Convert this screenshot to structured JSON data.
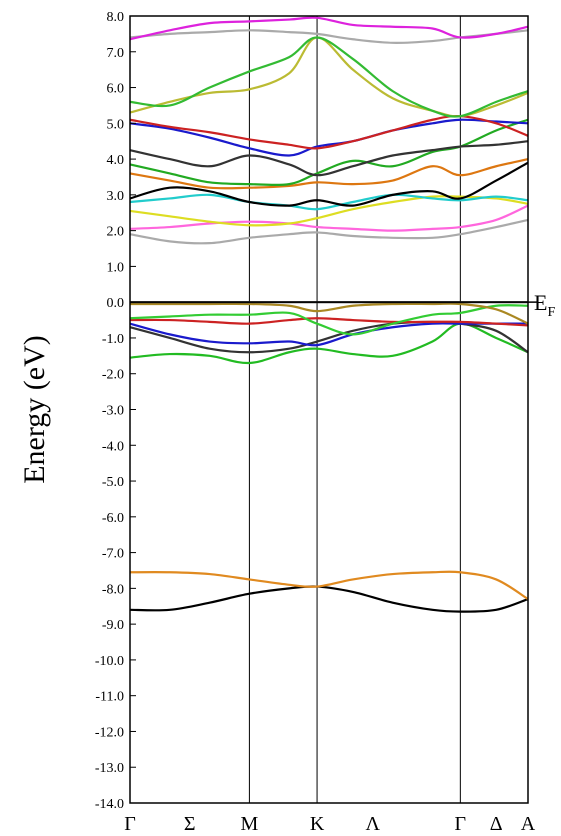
{
  "chart_data": {
    "type": "line",
    "title": "",
    "ylabel": "Energy (eV)",
    "xlabel": "",
    "ylim": [
      -14,
      8
    ],
    "yticks": [
      8,
      7,
      6,
      5,
      4,
      3,
      2,
      1,
      0,
      -1,
      -2,
      -3,
      -4,
      -5,
      -6,
      -7,
      -8,
      -9,
      -10,
      -11,
      -12,
      -13,
      -14
    ],
    "ytick_labels": [
      "8.0",
      "7.0",
      "6.0",
      "5.0",
      "4.0",
      "3.0",
      "2.0",
      "1.0",
      "0.0",
      "-1.0",
      "-2.0",
      "-3.0",
      "-4.0",
      "-5.0",
      "-6.0",
      "-7.0",
      "-8.0",
      "-9.0",
      "-10.0",
      "-11.0",
      "-12.0",
      "-13.0",
      "-14.0"
    ],
    "kpath": [
      {
        "label": "Γ",
        "x": 0.0,
        "vertical_line": false
      },
      {
        "label": "Σ",
        "x": 0.75,
        "vertical_line": false
      },
      {
        "label": "M",
        "x": 1.5,
        "vertical_line": true
      },
      {
        "label": "K",
        "x": 2.35,
        "vertical_line": true
      },
      {
        "label": "Λ",
        "x": 3.05,
        "vertical_line": false
      },
      {
        "label": "Γ",
        "x": 4.15,
        "vertical_line": true
      },
      {
        "label": "Δ",
        "x": 4.6,
        "vertical_line": false
      },
      {
        "label": "A",
        "x": 5.0,
        "vertical_line": false
      }
    ],
    "xlim": [
      0,
      5.0
    ],
    "fermi_level": {
      "y": 0.0,
      "label": "E",
      "subscript": "F"
    },
    "series": [
      {
        "color": "#000000",
        "x": [
          0,
          0.5,
          1.0,
          1.5,
          2.0,
          2.35,
          2.8,
          3.3,
          3.8,
          4.15,
          4.6,
          5.0
        ],
        "y": [
          -8.6,
          -8.6,
          -8.4,
          -8.15,
          -8.0,
          -7.95,
          -8.1,
          -8.4,
          -8.6,
          -8.65,
          -8.6,
          -8.3
        ]
      },
      {
        "color": "#e08a20",
        "x": [
          0,
          0.5,
          1.0,
          1.5,
          2.0,
          2.35,
          2.8,
          3.3,
          3.8,
          4.15,
          4.6,
          5.0
        ],
        "y": [
          -7.55,
          -7.55,
          -7.6,
          -7.75,
          -7.9,
          -7.95,
          -7.75,
          -7.6,
          -7.55,
          -7.55,
          -7.75,
          -8.3
        ]
      },
      {
        "color": "#22bb22",
        "x": [
          0,
          0.5,
          1.0,
          1.5,
          2.0,
          2.35,
          2.8,
          3.3,
          3.8,
          4.15,
          4.6,
          5.0
        ],
        "y": [
          -1.55,
          -1.45,
          -1.5,
          -1.7,
          -1.4,
          -1.3,
          -1.45,
          -1.5,
          -1.1,
          -0.6,
          -1.0,
          -1.4
        ]
      },
      {
        "color": "#333333",
        "x": [
          0,
          0.5,
          1.0,
          1.5,
          2.0,
          2.35,
          2.8,
          3.3,
          3.8,
          4.15,
          4.6,
          5.0
        ],
        "y": [
          -0.7,
          -1.0,
          -1.3,
          -1.4,
          -1.3,
          -1.1,
          -0.8,
          -0.6,
          -0.55,
          -0.6,
          -0.8,
          -1.4
        ]
      },
      {
        "color": "#1a1acc",
        "x": [
          0,
          0.5,
          1.0,
          1.5,
          2.0,
          2.35,
          2.8,
          3.3,
          3.8,
          4.15,
          4.6,
          5.0
        ],
        "y": [
          -0.6,
          -0.9,
          -1.1,
          -1.15,
          -1.1,
          -1.2,
          -0.9,
          -0.7,
          -0.6,
          -0.6,
          -0.6,
          -0.6
        ]
      },
      {
        "color": "#cc2222",
        "x": [
          0,
          0.5,
          1.0,
          1.5,
          2.0,
          2.35,
          2.8,
          3.3,
          3.8,
          4.15,
          4.6,
          5.0
        ],
        "y": [
          -0.5,
          -0.5,
          -0.55,
          -0.6,
          -0.5,
          -0.45,
          -0.5,
          -0.55,
          -0.55,
          -0.55,
          -0.6,
          -0.65
        ]
      },
      {
        "color": "#33cc33",
        "x": [
          0,
          0.5,
          1.0,
          1.5,
          2.0,
          2.35,
          2.8,
          3.3,
          3.8,
          4.15,
          4.6,
          5.0
        ],
        "y": [
          -0.45,
          -0.4,
          -0.35,
          -0.35,
          -0.3,
          -0.6,
          -0.9,
          -0.6,
          -0.35,
          -0.3,
          -0.1,
          -0.1
        ]
      },
      {
        "color": "#aa8822",
        "x": [
          0,
          0.5,
          1.0,
          1.5,
          2.0,
          2.35,
          2.8,
          3.3,
          3.8,
          4.15,
          4.6,
          5.0
        ],
        "y": [
          -0.05,
          -0.05,
          -0.05,
          -0.05,
          -0.1,
          -0.25,
          -0.1,
          -0.05,
          -0.05,
          -0.05,
          -0.2,
          -0.6
        ]
      },
      {
        "color": "#333333",
        "x": [
          0,
          0.5,
          1.0,
          1.5,
          2.0,
          2.35,
          2.8,
          3.3,
          3.8,
          4.15,
          4.6,
          5.0
        ],
        "y": [
          0.0,
          0.0,
          0.0,
          0.0,
          0.0,
          0.0,
          0.0,
          0.0,
          0.0,
          0.0,
          0.0,
          0.0
        ]
      },
      {
        "color": "#ff66dd",
        "x": [
          0,
          0.5,
          1.0,
          1.5,
          2.0,
          2.35,
          2.8,
          3.3,
          3.8,
          4.15,
          4.6,
          5.0
        ],
        "y": [
          2.05,
          2.1,
          2.2,
          2.25,
          2.2,
          2.1,
          2.05,
          2.0,
          2.05,
          2.1,
          2.3,
          2.7
        ]
      },
      {
        "color": "#aaaaaa",
        "x": [
          0,
          0.5,
          1.0,
          1.5,
          2.0,
          2.35,
          2.8,
          3.3,
          3.8,
          4.15,
          4.6,
          5.0
        ],
        "y": [
          1.9,
          1.7,
          1.65,
          1.8,
          1.9,
          1.95,
          1.85,
          1.8,
          1.8,
          1.9,
          2.1,
          2.3
        ]
      },
      {
        "color": "#dddd22",
        "x": [
          0,
          0.5,
          1.0,
          1.5,
          2.0,
          2.35,
          2.8,
          3.3,
          3.8,
          4.15,
          4.6,
          5.0
        ],
        "y": [
          2.55,
          2.4,
          2.25,
          2.15,
          2.2,
          2.35,
          2.6,
          2.8,
          2.95,
          2.95,
          2.9,
          2.75
        ]
      },
      {
        "color": "#22cccc",
        "x": [
          0,
          0.5,
          1.0,
          1.5,
          2.0,
          2.35,
          2.8,
          3.3,
          3.8,
          4.15,
          4.6,
          5.0
        ],
        "y": [
          2.8,
          2.9,
          3.0,
          2.8,
          2.7,
          2.6,
          2.8,
          3.0,
          2.9,
          2.85,
          2.95,
          2.85
        ]
      },
      {
        "color": "#000000",
        "x": [
          0,
          0.5,
          1.0,
          1.5,
          2.0,
          2.35,
          2.8,
          3.3,
          3.8,
          4.15,
          4.6,
          5.0
        ],
        "y": [
          2.9,
          3.2,
          3.1,
          2.8,
          2.7,
          2.85,
          2.7,
          3.0,
          3.1,
          2.9,
          3.4,
          3.9
        ]
      },
      {
        "color": "#dd7711",
        "x": [
          0,
          0.5,
          1.0,
          1.5,
          2.0,
          2.35,
          2.8,
          3.3,
          3.8,
          4.15,
          4.6,
          5.0
        ],
        "y": [
          3.6,
          3.4,
          3.2,
          3.2,
          3.25,
          3.35,
          3.3,
          3.4,
          3.8,
          3.55,
          3.8,
          4.0
        ]
      },
      {
        "color": "#22aa22",
        "x": [
          0,
          0.5,
          1.0,
          1.5,
          2.0,
          2.35,
          2.8,
          3.3,
          3.8,
          4.15,
          4.6,
          5.0
        ],
        "y": [
          3.85,
          3.6,
          3.35,
          3.3,
          3.3,
          3.6,
          3.95,
          3.8,
          4.2,
          4.35,
          4.8,
          5.1
        ]
      },
      {
        "color": "#333333",
        "x": [
          0,
          0.5,
          1.0,
          1.5,
          2.0,
          2.35,
          2.8,
          3.3,
          3.8,
          4.15,
          4.6,
          5.0
        ],
        "y": [
          4.25,
          4.0,
          3.8,
          4.1,
          3.85,
          3.55,
          3.8,
          4.1,
          4.25,
          4.35,
          4.4,
          4.5
        ]
      },
      {
        "color": "#1a1acc",
        "x": [
          0,
          0.5,
          1.0,
          1.5,
          2.0,
          2.35,
          2.8,
          3.3,
          3.8,
          4.15,
          4.6,
          5.0
        ],
        "y": [
          5.0,
          4.85,
          4.6,
          4.3,
          4.1,
          4.35,
          4.5,
          4.8,
          5.0,
          5.1,
          5.05,
          5.0
        ]
      },
      {
        "color": "#cc2222",
        "x": [
          0,
          0.5,
          1.0,
          1.5,
          2.0,
          2.35,
          2.8,
          3.3,
          3.8,
          4.15,
          4.6,
          5.0
        ],
        "y": [
          5.1,
          4.9,
          4.75,
          4.55,
          4.4,
          4.3,
          4.5,
          4.8,
          5.1,
          5.2,
          5.0,
          4.65
        ]
      },
      {
        "color": "#bbbb33",
        "x": [
          0,
          0.5,
          1.0,
          1.5,
          2.0,
          2.35,
          2.8,
          3.3,
          3.8,
          4.15,
          4.6,
          5.0
        ],
        "y": [
          5.3,
          5.6,
          5.85,
          5.95,
          6.4,
          7.4,
          6.5,
          5.7,
          5.35,
          5.2,
          5.5,
          5.85
        ]
      },
      {
        "color": "#33bb33",
        "x": [
          0,
          0.5,
          1.0,
          1.5,
          2.0,
          2.35,
          2.8,
          3.3,
          3.8,
          4.15,
          4.6,
          5.0
        ],
        "y": [
          5.6,
          5.5,
          6.0,
          6.45,
          6.85,
          7.4,
          6.8,
          5.9,
          5.35,
          5.2,
          5.6,
          5.9
        ]
      },
      {
        "color": "#aaaaaa",
        "x": [
          0,
          0.5,
          1.0,
          1.5,
          2.0,
          2.35,
          2.8,
          3.3,
          3.8,
          4.15,
          4.6,
          5.0
        ],
        "y": [
          7.4,
          7.5,
          7.55,
          7.6,
          7.55,
          7.5,
          7.35,
          7.25,
          7.3,
          7.4,
          7.5,
          7.6
        ]
      },
      {
        "color": "#dd22dd",
        "x": [
          0,
          0.5,
          1.0,
          1.5,
          2.0,
          2.35,
          2.8,
          3.3,
          3.8,
          4.15,
          4.6,
          5.0
        ],
        "y": [
          7.35,
          7.6,
          7.8,
          7.85,
          7.9,
          7.95,
          7.75,
          7.7,
          7.65,
          7.4,
          7.5,
          7.7
        ]
      }
    ]
  }
}
